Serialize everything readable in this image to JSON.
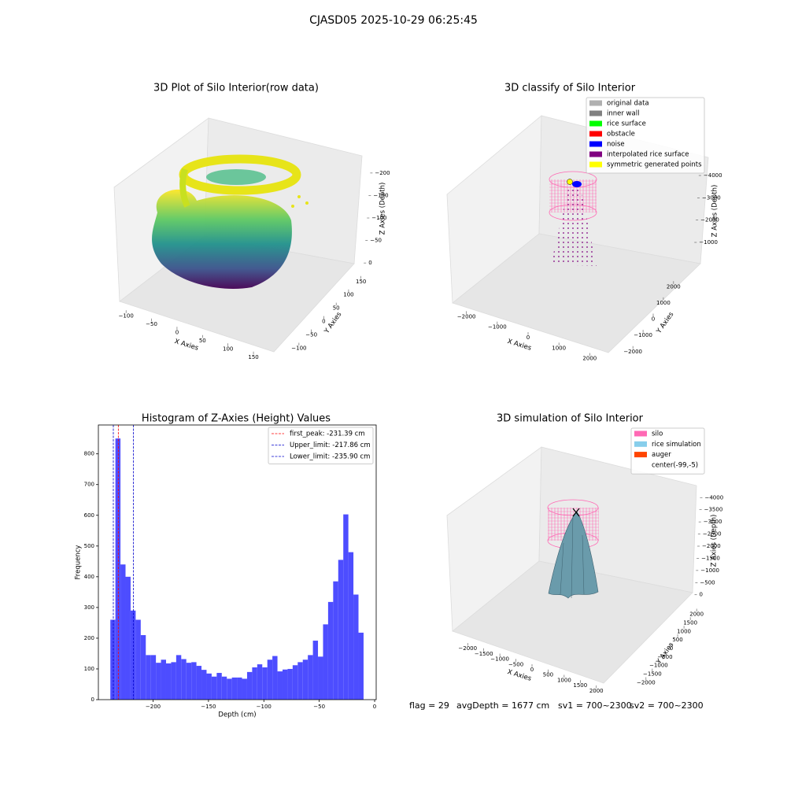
{
  "suptitle": "CJASD05 2025-10-29 06:25:45",
  "status": [
    "flag = 29",
    "avgDepth = 1677 cm",
    "sv1 = 700~2300",
    "sv2 = 700~2300"
  ],
  "chart_data": [
    {
      "type": "scatter3d",
      "title": "3D Plot of Silo Interior(row data)",
      "xlabel": "X Axies",
      "ylabel": "Y Axies",
      "zlabel": "Z Axies (Depth)",
      "xlim": [
        -125,
        170
      ],
      "ylim": [
        -125,
        170
      ],
      "zlim": [
        -240,
        5
      ],
      "xticks": [
        {
          "value": -100,
          "label": "−100"
        },
        {
          "value": -50,
          "label": "−50"
        },
        0,
        50,
        100,
        150
      ],
      "yticks": [
        {
          "value": -100,
          "label": "−100"
        },
        {
          "value": -50,
          "label": "−50"
        },
        0,
        50,
        100,
        150
      ],
      "zticks": [
        0,
        {
          "value": -50,
          "label": "−50"
        },
        {
          "value": -100,
          "label": "−100"
        },
        {
          "value": -150,
          "label": "−150"
        },
        {
          "value": -200,
          "label": "−200"
        }
      ]
    },
    {
      "type": "scatter3d",
      "title": "3D classify of Silo Interior",
      "xlabel": "X Axies",
      "ylabel": "Y Axies",
      "zlabel": "Z Axies (Depth)",
      "xlim": [
        -2400,
        2400
      ],
      "ylim": [
        -2400,
        2400
      ],
      "zlim": [
        -4600,
        200
      ],
      "xticks": [
        {
          "value": -2000,
          "label": "−2000"
        },
        {
          "value": -1000,
          "label": "−1000"
        },
        0,
        1000,
        2000
      ],
      "yticks": [
        {
          "value": -2000,
          "label": "−2000"
        },
        {
          "value": -1000,
          "label": "−1000"
        },
        0,
        1000,
        2000
      ],
      "zticks": [
        {
          "value": -1000,
          "label": "−1000"
        },
        {
          "value": -2000,
          "label": "−2000"
        },
        {
          "value": -3000,
          "label": "−3000"
        },
        {
          "value": -4000,
          "label": "−4000"
        }
      ],
      "legend": [
        {
          "name": "original data",
          "color": "#b0b0b0"
        },
        {
          "name": "inner wall",
          "color": "#808080"
        },
        {
          "name": "rice surface",
          "color": "#00ff00"
        },
        {
          "name": "obstacle",
          "color": "#ff0000"
        },
        {
          "name": "noise",
          "color": "#0000ff"
        },
        {
          "name": "interpolated rice surface",
          "color": "#800080"
        },
        {
          "name": "symmetric generated points",
          "color": "#ffff00"
        }
      ]
    },
    {
      "type": "histogram",
      "title": "Histogram of Z-Axies (Height) Values",
      "xlabel": "Depth (cm)",
      "ylabel": "Frequency",
      "color": "#4d4dff",
      "bins": [
        -238.6,
        -234.028,
        -229.456,
        -224.884,
        -220.312,
        -215.74,
        -211.168,
        -206.596,
        -202.024,
        -197.452,
        -192.88,
        -188.308,
        -183.736,
        -179.164,
        -174.592,
        -170.02,
        -165.448,
        -160.876,
        -156.304,
        -151.732,
        -147.16,
        -142.588,
        -138.016,
        -133.444,
        -128.872,
        -124.3,
        -119.728,
        -115.156,
        -110.584,
        -106.012,
        -101.44,
        -96.868,
        -92.296,
        -87.724,
        -83.152,
        -78.58,
        -74.008,
        -69.436,
        -64.864,
        -60.292,
        -55.72,
        -51.148,
        -46.576,
        -42.004,
        -37.432,
        -32.86,
        -28.288,
        -23.716,
        -19.144,
        -14.572,
        -10
      ],
      "values": [
        260,
        850,
        440,
        400,
        290,
        260,
        210,
        145,
        145,
        120,
        130,
        118,
        122,
        145,
        132,
        120,
        122,
        110,
        97,
        85,
        75,
        87,
        75,
        68,
        72,
        72,
        68,
        90,
        105,
        115,
        105,
        130,
        142,
        92,
        98,
        100,
        112,
        122,
        130,
        145,
        192,
        140,
        245,
        318,
        385,
        455,
        603,
        480,
        342,
        218
      ],
      "lines": [
        {
          "name": "first_peak: -231.39 cm",
          "value": -231.39,
          "color": "#ff0000"
        },
        {
          "name": "Upper_limit: -217.86 cm",
          "value": -217.86,
          "color": "#0000cc"
        },
        {
          "name": "Lower_limit: -235.90 cm",
          "value": -235.9,
          "color": "#0000cc"
        }
      ],
      "xlim": [
        -249.4,
        1.4
      ],
      "ylim": [
        0,
        894
      ],
      "xticks": [
        {
          "value": -200,
          "label": "−200"
        },
        {
          "value": -150,
          "label": "−150"
        },
        {
          "value": -100,
          "label": "−100"
        },
        {
          "value": -50,
          "label": "−50"
        },
        0
      ],
      "yticks": [
        0,
        100,
        200,
        300,
        400,
        500,
        600,
        700,
        800
      ]
    },
    {
      "type": "surface3d",
      "title": "3D simulation of Silo Interior",
      "xlabel": "X Axies",
      "ylabel": "Y Axies",
      "zlabel": "Z Axies (Depth)",
      "xlim": [
        -2300,
        2300
      ],
      "ylim": [
        -2300,
        2300
      ],
      "zlim": [
        -4300,
        300
      ],
      "xticks": [
        {
          "value": -2000,
          "label": "−2000"
        },
        {
          "value": -1500,
          "label": "−1500"
        },
        {
          "value": -1000,
          "label": "−1000"
        },
        {
          "value": -500,
          "label": "−500"
        },
        0,
        500,
        1000,
        1500,
        2000
      ],
      "yticks": [
        {
          "value": -2000,
          "label": "−2000"
        },
        {
          "value": -1500,
          "label": "−1500"
        },
        {
          "value": -1000,
          "label": "−1000"
        },
        {
          "value": -500,
          "label": "−500"
        },
        0,
        500,
        1000,
        1500,
        2000
      ],
      "zticks": [
        0,
        {
          "value": -500,
          "label": "−500"
        },
        {
          "value": -1000,
          "label": "−1000"
        },
        {
          "value": -1500,
          "label": "−1500"
        },
        {
          "value": -2000,
          "label": "−2000"
        },
        {
          "value": -2500,
          "label": "−2500"
        },
        {
          "value": -3000,
          "label": "−3000"
        },
        {
          "value": -3500,
          "label": "−3500"
        },
        {
          "value": -4000,
          "label": "−4000"
        }
      ],
      "legend": [
        {
          "name": "silo",
          "color": "#ff69b4"
        },
        {
          "name": "rice simulation",
          "color": "#87ceeb"
        },
        {
          "name": "auger",
          "color": "#ff4500"
        },
        {
          "name": "center(-99,-5)",
          "color": "#ffffff"
        }
      ]
    }
  ]
}
